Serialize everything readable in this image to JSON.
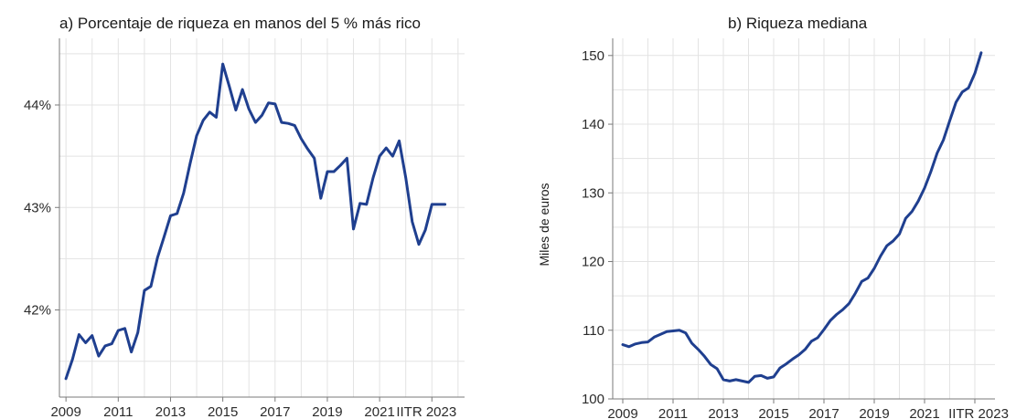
{
  "chart_data": [
    {
      "type": "line",
      "title": "a) Porcentaje de riqueza en manos del 5 % más rico",
      "xlabel": "",
      "ylabel": "",
      "x_tick_labels": [
        "2009",
        "2011",
        "2013",
        "2015",
        "2017",
        "2019",
        "2021",
        "IITR 2023"
      ],
      "y_ticks": [
        42,
        43,
        44
      ],
      "y_tick_labels": [
        "42%",
        "43%",
        "44%"
      ],
      "xlim": [
        2008.75,
        2024.25
      ],
      "ylim": [
        41.15,
        44.65
      ],
      "grid": true,
      "color": "#1f3f8f",
      "series": [
        {
          "x": [
            2009.0,
            2009.25,
            2009.5,
            2009.75,
            2010.0,
            2010.25,
            2010.5,
            2010.75,
            2011.0,
            2011.25,
            2011.5,
            2011.75,
            2012.0,
            2012.25,
            2012.5,
            2012.75,
            2013.0,
            2013.25,
            2013.5,
            2013.75,
            2014.0,
            2014.25,
            2014.5,
            2014.75,
            2015.0,
            2015.25,
            2015.5,
            2015.75,
            2016.0,
            2016.25,
            2016.5,
            2016.75,
            2017.0,
            2017.25,
            2017.5,
            2017.75,
            2018.0,
            2018.25,
            2018.5,
            2018.75,
            2019.0,
            2019.25,
            2019.5,
            2019.75,
            2020.0,
            2020.25,
            2020.5,
            2020.75,
            2021.0,
            2021.25,
            2021.5,
            2021.75,
            2022.0,
            2022.25,
            2022.5,
            2022.75,
            2023.0,
            2023.25,
            2023.5
          ],
          "values": [
            41.33,
            41.52,
            41.76,
            41.68,
            41.75,
            41.55,
            41.65,
            41.67,
            41.8,
            41.82,
            41.59,
            41.78,
            42.19,
            42.23,
            42.51,
            42.71,
            42.92,
            42.94,
            43.14,
            43.43,
            43.7,
            43.85,
            43.93,
            43.88,
            44.4,
            44.18,
            43.95,
            44.15,
            43.96,
            43.83,
            43.9,
            44.02,
            44.01,
            43.83,
            43.82,
            43.8,
            43.67,
            43.57,
            43.48,
            43.09,
            43.35,
            43.35,
            43.41,
            43.48,
            42.79,
            43.04,
            43.03,
            43.29,
            43.5,
            43.58,
            43.5,
            43.65,
            43.29,
            42.86,
            42.64,
            42.78,
            43.03,
            43.03,
            43.03
          ]
        }
      ]
    },
    {
      "type": "line",
      "title": "b) Riqueza mediana",
      "xlabel": "",
      "ylabel": "Miles de euros",
      "x_tick_labels": [
        "2009",
        "2011",
        "2013",
        "2015",
        "2017",
        "2019",
        "2021",
        "IITR 2023"
      ],
      "y_ticks": [
        100,
        110,
        120,
        130,
        140,
        150
      ],
      "y_tick_labels": [
        "100",
        "110",
        "120",
        "130",
        "140",
        "150"
      ],
      "xlim": [
        2008.6,
        2023.8
      ],
      "ylim": [
        100,
        152.5
      ],
      "grid": true,
      "color": "#1f3f8f",
      "series": [
        {
          "x": [
            2009.0,
            2009.25,
            2009.5,
            2009.75,
            2010.0,
            2010.25,
            2010.5,
            2010.75,
            2011.0,
            2011.25,
            2011.5,
            2011.75,
            2012.0,
            2012.25,
            2012.5,
            2012.75,
            2013.0,
            2013.25,
            2013.5,
            2013.75,
            2014.0,
            2014.25,
            2014.5,
            2014.75,
            2015.0,
            2015.25,
            2015.5,
            2015.75,
            2016.0,
            2016.25,
            2016.5,
            2016.75,
            2017.0,
            2017.25,
            2017.5,
            2017.75,
            2018.0,
            2018.25,
            2018.5,
            2018.75,
            2019.0,
            2019.25,
            2019.5,
            2019.75,
            2020.0,
            2020.25,
            2020.5,
            2020.75,
            2021.0,
            2021.25,
            2021.5,
            2021.75,
            2022.0,
            2022.25,
            2022.5,
            2022.75,
            2023.0,
            2023.25
          ],
          "values": [
            107.9,
            107.6,
            108.0,
            108.2,
            108.3,
            109.0,
            109.4,
            109.8,
            109.9,
            110.0,
            109.6,
            108.1,
            107.2,
            106.2,
            105.0,
            104.4,
            102.8,
            102.6,
            102.8,
            102.6,
            102.4,
            103.3,
            103.4,
            103.0,
            103.2,
            104.5,
            105.1,
            105.8,
            106.4,
            107.2,
            108.4,
            108.9,
            110.1,
            111.4,
            112.3,
            113.0,
            113.9,
            115.4,
            117.1,
            117.6,
            119.0,
            120.8,
            122.3,
            123.0,
            124.0,
            126.3,
            127.3,
            128.8,
            130.7,
            133.1,
            135.8,
            137.7,
            140.5,
            143.2,
            144.7,
            145.3,
            147.4,
            150.4
          ]
        }
      ]
    }
  ]
}
